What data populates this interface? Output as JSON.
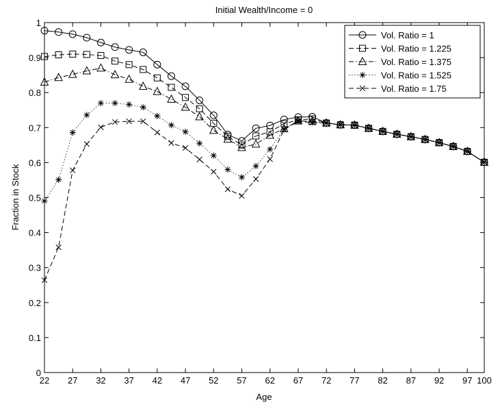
{
  "chart_data": {
    "type": "line",
    "title": "Initial Wealth/Income = 0",
    "xlabel": "Age",
    "ylabel": "Fraction in Stock",
    "xlim": [
      22,
      100
    ],
    "ylim": [
      0,
      1
    ],
    "x_ticks": [
      22,
      27,
      32,
      37,
      42,
      47,
      52,
      57,
      62,
      67,
      72,
      77,
      82,
      87,
      92,
      97,
      100
    ],
    "x_tick_labels": [
      "22",
      "27",
      "32",
      "37",
      "42",
      "47",
      "52",
      "57",
      "62",
      "67",
      "72",
      "77",
      "82",
      "87",
      "92",
      "97",
      "100"
    ],
    "y_ticks": [
      0,
      0.1,
      0.2,
      0.3,
      0.4,
      0.5,
      0.6,
      0.7,
      0.8,
      0.9,
      1
    ],
    "y_tick_labels": [
      "0",
      "0.1",
      "0.2",
      "0.3",
      "0.4",
      "0.5",
      "0.6",
      "0.7",
      "0.8",
      "0.9",
      "1"
    ],
    "grid": false,
    "legend_position": "top-right",
    "x": [
      22,
      24.5,
      27,
      29.5,
      32,
      34.5,
      37,
      39.5,
      42,
      44.5,
      47,
      49.5,
      52,
      54.5,
      57,
      59.5,
      62,
      64.5,
      67,
      69.5,
      72,
      74.5,
      77,
      79.5,
      82,
      84.5,
      87,
      89.5,
      92,
      94.5,
      97,
      100
    ],
    "series": [
      {
        "name": "Vol. Ratio = 1",
        "marker": "circle",
        "dash": "solid",
        "values": [
          0.977,
          0.973,
          0.967,
          0.957,
          0.943,
          0.93,
          0.922,
          0.915,
          0.88,
          0.847,
          0.818,
          0.778,
          0.735,
          0.68,
          0.662,
          0.698,
          0.706,
          0.723,
          0.73,
          0.731,
          0.713,
          0.708,
          0.707,
          0.698,
          0.689,
          0.681,
          0.674,
          0.666,
          0.657,
          0.646,
          0.632,
          0.601
        ]
      },
      {
        "name": "Vol. Ratio = 1.225",
        "marker": "square",
        "dash": "dashed",
        "values": [
          0.903,
          0.908,
          0.91,
          0.909,
          0.906,
          0.89,
          0.88,
          0.866,
          0.842,
          0.815,
          0.786,
          0.754,
          0.712,
          0.675,
          0.65,
          0.676,
          0.688,
          0.711,
          0.722,
          0.725,
          0.713,
          0.708,
          0.707,
          0.698,
          0.689,
          0.681,
          0.674,
          0.666,
          0.657,
          0.646,
          0.632,
          0.601
        ]
      },
      {
        "name": "Vol. Ratio = 1.375",
        "marker": "triangle",
        "dash": "dashdot",
        "values": [
          0.83,
          0.843,
          0.852,
          0.862,
          0.87,
          0.851,
          0.838,
          0.818,
          0.803,
          0.781,
          0.758,
          0.731,
          0.692,
          0.667,
          0.643,
          0.653,
          0.678,
          0.697,
          0.719,
          0.718,
          0.713,
          0.708,
          0.707,
          0.698,
          0.689,
          0.681,
          0.674,
          0.666,
          0.657,
          0.646,
          0.632,
          0.601
        ]
      },
      {
        "name": "Vol. Ratio = 1.525",
        "marker": "star",
        "dash": "dotted",
        "values": [
          0.49,
          0.551,
          0.686,
          0.736,
          0.77,
          0.77,
          0.766,
          0.758,
          0.733,
          0.707,
          0.688,
          0.655,
          0.62,
          0.58,
          0.558,
          0.59,
          0.638,
          0.695,
          0.72,
          0.715,
          0.713,
          0.708,
          0.707,
          0.698,
          0.689,
          0.681,
          0.674,
          0.666,
          0.657,
          0.646,
          0.632,
          0.601
        ]
      },
      {
        "name": "Vol. Ratio = 1.75",
        "marker": "x",
        "dash": "dashed",
        "values": [
          0.264,
          0.358,
          0.578,
          0.653,
          0.701,
          0.716,
          0.718,
          0.718,
          0.686,
          0.656,
          0.642,
          0.609,
          0.574,
          0.524,
          0.505,
          0.553,
          0.61,
          0.694,
          0.718,
          0.714,
          0.713,
          0.708,
          0.707,
          0.698,
          0.689,
          0.681,
          0.674,
          0.666,
          0.657,
          0.646,
          0.632,
          0.601
        ]
      }
    ]
  }
}
